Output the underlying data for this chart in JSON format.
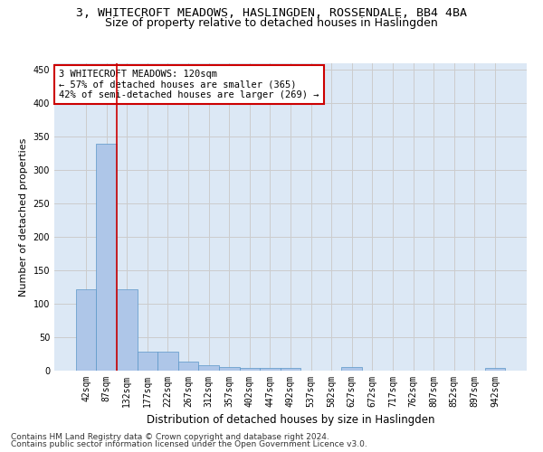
{
  "title_line1": "3, WHITECROFT MEADOWS, HASLINGDEN, ROSSENDALE, BB4 4BA",
  "title_line2": "Size of property relative to detached houses in Haslingden",
  "xlabel": "Distribution of detached houses by size in Haslingden",
  "ylabel": "Number of detached properties",
  "footer_line1": "Contains HM Land Registry data © Crown copyright and database right 2024.",
  "footer_line2": "Contains public sector information licensed under the Open Government Licence v3.0.",
  "bar_labels": [
    "42sqm",
    "87sqm",
    "132sqm",
    "177sqm",
    "222sqm",
    "267sqm",
    "312sqm",
    "357sqm",
    "402sqm",
    "447sqm",
    "492sqm",
    "537sqm",
    "582sqm",
    "627sqm",
    "672sqm",
    "717sqm",
    "762sqm",
    "807sqm",
    "852sqm",
    "897sqm",
    "942sqm"
  ],
  "bar_values": [
    122,
    340,
    122,
    29,
    29,
    14,
    8,
    6,
    4,
    4,
    4,
    0,
    0,
    5,
    0,
    0,
    0,
    0,
    0,
    0,
    4
  ],
  "bar_color": "#aec6e8",
  "bar_edge_color": "#5a96c8",
  "annotation_text": "3 WHITECROFT MEADOWS: 120sqm\n← 57% of detached houses are smaller (365)\n42% of semi-detached houses are larger (269) →",
  "annotation_box_color": "#ffffff",
  "annotation_box_edgecolor": "#cc0000",
  "vline_x": 1.5,
  "vline_color": "#cc0000",
  "ylim": [
    0,
    460
  ],
  "yticks": [
    0,
    50,
    100,
    150,
    200,
    250,
    300,
    350,
    400,
    450
  ],
  "grid_color": "#cccccc",
  "bg_color": "#dce8f5",
  "title1_fontsize": 9.5,
  "title2_fontsize": 9,
  "xlabel_fontsize": 8.5,
  "ylabel_fontsize": 8,
  "tick_fontsize": 7,
  "annotation_fontsize": 7.5,
  "footer_fontsize": 6.5
}
